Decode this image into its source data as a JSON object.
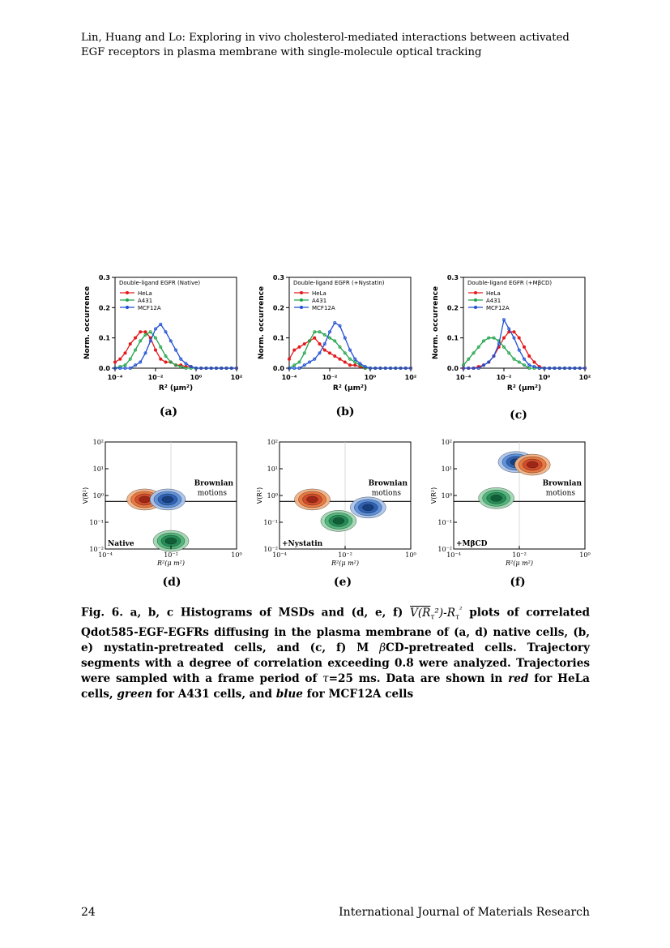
{
  "header": {
    "running_head": "Lin, Huang and Lo: Exploring in vivo cholesterol-mediated interactions between activated EGF receptors in plasma membrane with single-molecule optical tracking"
  },
  "figure": {
    "panel_labels": [
      "(a)",
      "(b)",
      "(c)",
      "(d)",
      "(e)",
      "(f)"
    ],
    "histogram_ylabel": "Norm. occurrence",
    "histogram_xlabel": "R² (μm²)",
    "contour_ylabel": "V(R²)",
    "contour_xlabel": "R²(μ m²)",
    "brownian_label_1": "Brownian",
    "brownian_label_2": "motions",
    "colors": {
      "HeLa": "#e31a1c",
      "A431": "#22a34a",
      "MCF12A": "#1f4fd1"
    }
  },
  "chart_data": [
    {
      "type": "line",
      "panel": "(a)",
      "title": "Double-ligand EGFR (Native)",
      "xlabel": "R² (μm²)",
      "ylabel": "Norm. occurrence",
      "xscale": "log",
      "xlim": [
        0.0001,
        100
      ],
      "ylim": [
        0,
        0.3
      ],
      "xticks": [
        "10⁻⁴",
        "10⁻²",
        "10⁰",
        "10²"
      ],
      "yticks": [
        "0.0",
        "0.1",
        "0.2",
        "0.3"
      ],
      "legend": [
        "HeLa",
        "A431",
        "MCF12A"
      ],
      "x": [
        -4,
        -3.75,
        -3.5,
        -3.25,
        -3,
        -2.75,
        -2.5,
        -2.25,
        -2,
        -1.75,
        -1.5,
        -1.25,
        -1,
        -0.75,
        -0.5,
        -0.25,
        0,
        0.25,
        0.5,
        0.75,
        1,
        1.25,
        1.5,
        1.75,
        2
      ],
      "series": [
        {
          "name": "HeLa",
          "values": [
            0.02,
            0.03,
            0.05,
            0.08,
            0.1,
            0.12,
            0.12,
            0.1,
            0.06,
            0.03,
            0.02,
            0.02,
            0.01,
            0.01,
            0.005,
            0.005,
            0,
            0,
            0,
            0,
            0,
            0,
            0,
            0,
            0
          ]
        },
        {
          "name": "A431",
          "values": [
            0,
            0.005,
            0.01,
            0.03,
            0.06,
            0.09,
            0.11,
            0.12,
            0.1,
            0.07,
            0.04,
            0.02,
            0.01,
            0.005,
            0,
            0,
            0,
            0,
            0,
            0,
            0,
            0,
            0,
            0,
            0
          ]
        },
        {
          "name": "MCF12A",
          "values": [
            0,
            0,
            0,
            0,
            0.01,
            0.02,
            0.05,
            0.09,
            0.13,
            0.145,
            0.12,
            0.09,
            0.06,
            0.03,
            0.015,
            0.005,
            0,
            0,
            0,
            0,
            0,
            0,
            0,
            0,
            0
          ]
        }
      ]
    },
    {
      "type": "line",
      "panel": "(b)",
      "title": "Double-ligand EGFR (+Nystatin)",
      "xlabel": "R² (μm²)",
      "ylabel": "Norm. occurrence",
      "xscale": "log",
      "xlim": [
        0.0001,
        100
      ],
      "ylim": [
        0,
        0.3
      ],
      "xticks": [
        "10⁻⁴",
        "10⁻²",
        "10⁰",
        "10²"
      ],
      "yticks": [
        "0.0",
        "0.1",
        "0.2",
        "0.3"
      ],
      "legend": [
        "HeLa",
        "A431",
        "MCF12A"
      ],
      "x": [
        -4,
        -3.75,
        -3.5,
        -3.25,
        -3,
        -2.75,
        -2.5,
        -2.25,
        -2,
        -1.75,
        -1.5,
        -1.25,
        -1,
        -0.75,
        -0.5,
        -0.25,
        0,
        0.25,
        0.5,
        0.75,
        1,
        1.25,
        1.5,
        1.75,
        2
      ],
      "series": [
        {
          "name": "HeLa",
          "values": [
            0.03,
            0.06,
            0.07,
            0.08,
            0.09,
            0.1,
            0.08,
            0.06,
            0.05,
            0.04,
            0.03,
            0.02,
            0.01,
            0.01,
            0.005,
            0,
            0,
            0,
            0,
            0,
            0,
            0,
            0,
            0,
            0
          ]
        },
        {
          "name": "A431",
          "values": [
            0,
            0.01,
            0.02,
            0.05,
            0.09,
            0.12,
            0.12,
            0.11,
            0.1,
            0.09,
            0.07,
            0.05,
            0.03,
            0.02,
            0.01,
            0,
            0,
            0,
            0,
            0,
            0,
            0,
            0,
            0,
            0
          ]
        },
        {
          "name": "MCF12A",
          "values": [
            0,
            0,
            0,
            0.01,
            0.02,
            0.03,
            0.05,
            0.08,
            0.12,
            0.15,
            0.14,
            0.1,
            0.06,
            0.03,
            0.015,
            0.005,
            0,
            0,
            0,
            0,
            0,
            0,
            0,
            0,
            0
          ]
        }
      ]
    },
    {
      "type": "line",
      "panel": "(c)",
      "title": "Double-ligand EGFR (+MβCD)",
      "xlabel": "R² (μm²)",
      "ylabel": "Norm. occurrence",
      "xscale": "log",
      "xlim": [
        0.0001,
        100
      ],
      "ylim": [
        0,
        0.3
      ],
      "xticks": [
        "10⁻⁴",
        "10⁻²",
        "10⁰",
        "10²"
      ],
      "yticks": [
        "0.0",
        "0.1",
        "0.2",
        "0.3"
      ],
      "legend": [
        "HeLa",
        "A431",
        "MCF12A"
      ],
      "x": [
        -4,
        -3.75,
        -3.5,
        -3.25,
        -3,
        -2.75,
        -2.5,
        -2.25,
        -2,
        -1.75,
        -1.5,
        -1.25,
        -1,
        -0.75,
        -0.5,
        -0.25,
        0,
        0.25,
        0.5,
        0.75,
        1,
        1.25,
        1.5,
        1.75,
        2
      ],
      "series": [
        {
          "name": "HeLa",
          "values": [
            0,
            0,
            0,
            0.005,
            0.01,
            0.02,
            0.04,
            0.07,
            0.1,
            0.12,
            0.12,
            0.1,
            0.07,
            0.04,
            0.02,
            0.005,
            0,
            0,
            0,
            0,
            0,
            0,
            0,
            0,
            0
          ]
        },
        {
          "name": "A431",
          "values": [
            0.01,
            0.03,
            0.05,
            0.07,
            0.09,
            0.1,
            0.1,
            0.09,
            0.07,
            0.05,
            0.03,
            0.02,
            0.01,
            0,
            0,
            0,
            0,
            0,
            0,
            0,
            0,
            0,
            0,
            0,
            0
          ]
        },
        {
          "name": "MCF12A",
          "values": [
            0,
            0,
            0,
            0,
            0.01,
            0.02,
            0.04,
            0.08,
            0.16,
            0.13,
            0.1,
            0.06,
            0.03,
            0.01,
            0.005,
            0,
            0,
            0,
            0,
            0,
            0,
            0,
            0,
            0,
            0
          ]
        }
      ]
    },
    {
      "type": "contour",
      "panel": "(d)",
      "condition_label": "Native",
      "xlabel": "R²(μ m²)",
      "ylabel": "V(R²)",
      "xscale": "log",
      "yscale": "log",
      "xlim": [
        0.0001,
        1
      ],
      "ylim": [
        0.01,
        100
      ],
      "xticks": [
        "10⁻⁴",
        "10⁻²",
        "10⁰"
      ],
      "yticks": [
        "10⁻²",
        "10⁻¹",
        "10⁰",
        "10¹",
        "10²"
      ],
      "reference_line_y": 0.6,
      "blobs": [
        {
          "name": "HeLa",
          "log_x": -2.8,
          "log_y": -0.15
        },
        {
          "name": "MCF12A",
          "log_x": -2.1,
          "log_y": -0.15
        },
        {
          "name": "A431",
          "log_x": -2.0,
          "log_y": -1.7
        }
      ]
    },
    {
      "type": "contour",
      "panel": "(e)",
      "condition_label": "+Nystatin",
      "xlabel": "R²(μ m²)",
      "ylabel": "V(R²)",
      "xscale": "log",
      "yscale": "log",
      "xlim": [
        0.0001,
        1
      ],
      "ylim": [
        0.01,
        100
      ],
      "xticks": [
        "10⁻⁴",
        "10⁻²",
        "10⁰"
      ],
      "yticks": [
        "10⁻²",
        "10⁻¹",
        "10⁰",
        "10¹",
        "10²"
      ],
      "reference_line_y": 0.6,
      "blobs": [
        {
          "name": "HeLa",
          "log_x": -3.0,
          "log_y": -0.15
        },
        {
          "name": "A431",
          "log_x": -2.2,
          "log_y": -0.95
        },
        {
          "name": "MCF12A",
          "log_x": -1.3,
          "log_y": -0.45
        }
      ]
    },
    {
      "type": "contour",
      "panel": "(f)",
      "condition_label": "+MβCD",
      "xlabel": "R²(μ m²)",
      "ylabel": "V(R²)",
      "xscale": "log",
      "yscale": "log",
      "xlim": [
        0.0001,
        1
      ],
      "ylim": [
        0.01,
        100
      ],
      "xticks": [
        "10⁻⁴",
        "10⁻²",
        "10⁰"
      ],
      "yticks": [
        "10⁻²",
        "10⁻¹",
        "10⁰",
        "10¹",
        "10²"
      ],
      "reference_line_y": 0.6,
      "blobs": [
        {
          "name": "A431",
          "log_x": -2.7,
          "log_y": -0.1
        },
        {
          "name": "MCF12A",
          "log_x": -2.1,
          "log_y": 1.25
        },
        {
          "name": "HeLa",
          "log_x": -1.6,
          "log_y": 1.15
        }
      ]
    }
  ],
  "caption": {
    "part1": "Fig. 6. a, b, c Histograms of MSDs and (d, e, f) ",
    "math1": "V(R",
    "math2": "τ",
    "math3": "²)-R",
    "math4": "τ",
    "math5": "²",
    "part2": " plots of correlated Qdot585-EGF-EGFRs diffusing in the plasma membrane of (a, d) native cells, (b, e) nystatin-pretreated cells, and (c, f) M ",
    "beta": "β",
    "part3": "CD-pretreated cells. Trajectory segments with a degree of correlation exceeding 0.8 were analyzed. Trajectories were sampled with a frame period of ",
    "tau": "τ",
    "part4": "=25 ms. Data are shown in ",
    "red": "red",
    "part5": " for HeLa cells, ",
    "green": "green",
    "part6": " for A431 cells, and ",
    "blue": "blue",
    "part7": " for MCF12A cells"
  },
  "footer": {
    "page_number": "24",
    "journal": "International Journal of Materials Research"
  }
}
